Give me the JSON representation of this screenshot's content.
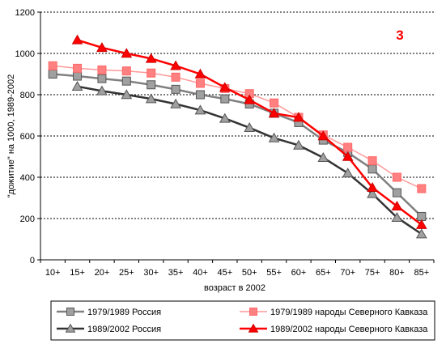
{
  "chart_data": {
    "type": "line",
    "panel_label": "3",
    "ylabel": "\"дожитие\" на 1000, 1989-2002",
    "xlabel": "возраст в 2002",
    "ylim": [
      0,
      1200
    ],
    "yticks": [
      0,
      200,
      400,
      600,
      800,
      1000,
      1200
    ],
    "grid": "horizontal dashed",
    "legend_position": "bottom",
    "categories": [
      "10+",
      "15+",
      "20+",
      "25+",
      "30+",
      "35+",
      "40+",
      "45+",
      "50+",
      "55+",
      "60+",
      "65+",
      "70+",
      "75+",
      "80+",
      "85+"
    ],
    "series": [
      {
        "name": "1979/1989 Россия",
        "color": "#808080",
        "marker": "square",
        "marker_color": "#a0a0a0",
        "values": [
          900,
          890,
          878,
          866,
          848,
          826,
          800,
          780,
          755,
          710,
          665,
          580,
          520,
          440,
          325,
          210
        ]
      },
      {
        "name": "1979/1989 народы Северного Кавказа",
        "color": "#ff9999",
        "marker": "square",
        "marker_color": "#ff8080",
        "values": [
          940,
          928,
          920,
          915,
          905,
          885,
          855,
          830,
          805,
          760,
          690,
          605,
          545,
          480,
          400,
          345
        ]
      },
      {
        "name": "1989/2002 Россия",
        "color": "#333333",
        "marker": "triangle",
        "marker_color": "#a0a0a0",
        "values": [
          null,
          840,
          818,
          800,
          780,
          755,
          725,
          685,
          640,
          590,
          555,
          495,
          420,
          320,
          205,
          125
        ]
      },
      {
        "name": "1989/2002 народы Северного Кавказа",
        "color": "#ff0000",
        "marker": "triangle",
        "marker_color": "#ff0000",
        "values": [
          null,
          1065,
          1028,
          1000,
          975,
          940,
          900,
          835,
          775,
          710,
          690,
          600,
          500,
          350,
          260,
          170
        ]
      }
    ]
  }
}
